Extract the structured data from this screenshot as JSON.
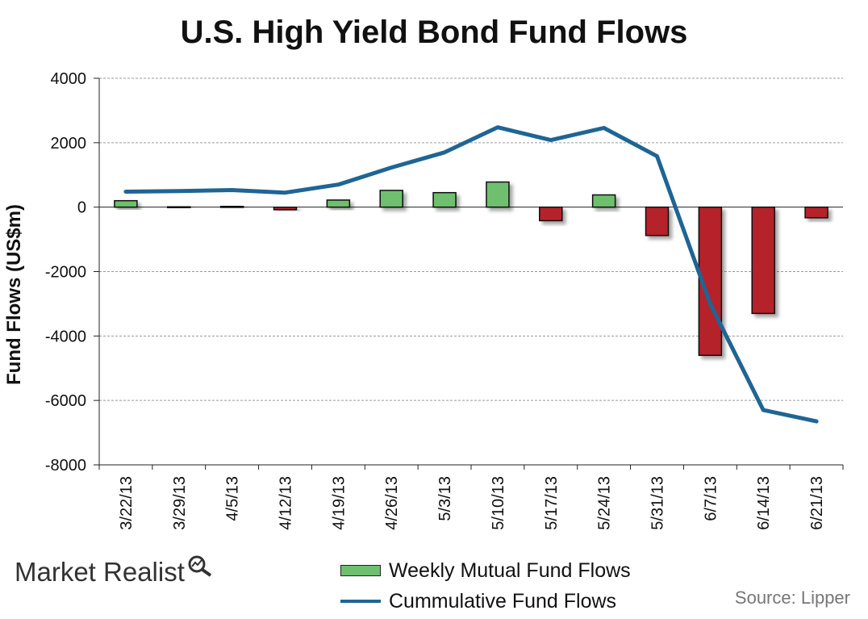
{
  "header": {
    "title": "U.S. High Yield Bond Fund Flows"
  },
  "footer": {
    "logo_text": "Market Realist",
    "source": "Source: Lipper"
  },
  "colors": {
    "inflow_bar": "#6ec06e",
    "outflow_bar": "#b5232a",
    "cumulative_line": "#1f6594",
    "grid": "#9a9a9a"
  },
  "chart_data": {
    "type": "bar",
    "title": "U.S. High Yield Bond Fund Flows",
    "xlabel": "",
    "ylabel": "Fund Flows (US$m)",
    "ylim": [
      -8000,
      4000
    ],
    "yticks": [
      4000,
      2000,
      0,
      -2000,
      -4000,
      -6000,
      -8000
    ],
    "grid": true,
    "legend_position": "bottom",
    "categories": [
      "3/22/13",
      "3/29/13",
      "4/5/13",
      "4/12/13",
      "4/19/13",
      "4/26/13",
      "5/3/13",
      "5/10/13",
      "5/17/13",
      "5/24/13",
      "5/31/13",
      "6/7/13",
      "6/14/13",
      "6/21/13"
    ],
    "series": [
      {
        "name": "Weekly Mutual Fund Flows",
        "type": "bar",
        "values": [
          200,
          20,
          30,
          -80,
          220,
          520,
          450,
          780,
          -420,
          380,
          -880,
          -4600,
          -3300,
          -330
        ]
      },
      {
        "name": "Cummulative Fund Flows",
        "type": "line",
        "values": [
          480,
          500,
          530,
          450,
          700,
          1230,
          1700,
          2480,
          2080,
          2460,
          1580,
          -3000,
          -6300,
          -6650
        ]
      }
    ]
  }
}
